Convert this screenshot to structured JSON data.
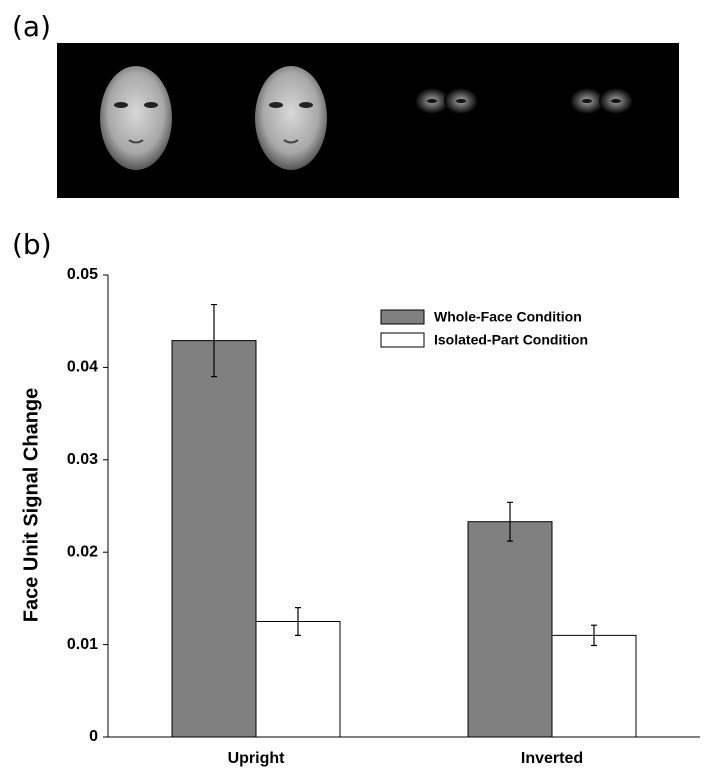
{
  "panel_a_label": "(a)",
  "panel_b_label": "(b)",
  "chart_data": {
    "type": "bar",
    "ylabel": "Face Unit Signal Change",
    "categories": [
      "Upright",
      "Inverted"
    ],
    "series": [
      {
        "name": "Whole-Face Condition",
        "color": "#808080",
        "values": [
          0.0429,
          0.0233
        ],
        "errors": [
          0.0039,
          0.0021
        ]
      },
      {
        "name": "Isolated-Part Condition",
        "color": "#ffffff",
        "values": [
          0.0125,
          0.011
        ],
        "errors": [
          0.0015,
          0.0011
        ]
      }
    ],
    "ylim": [
      0,
      0.05
    ],
    "yticks": [
      0,
      0.01,
      0.02,
      0.03,
      0.04,
      0.05
    ],
    "grid": false,
    "legend": "upper right"
  }
}
